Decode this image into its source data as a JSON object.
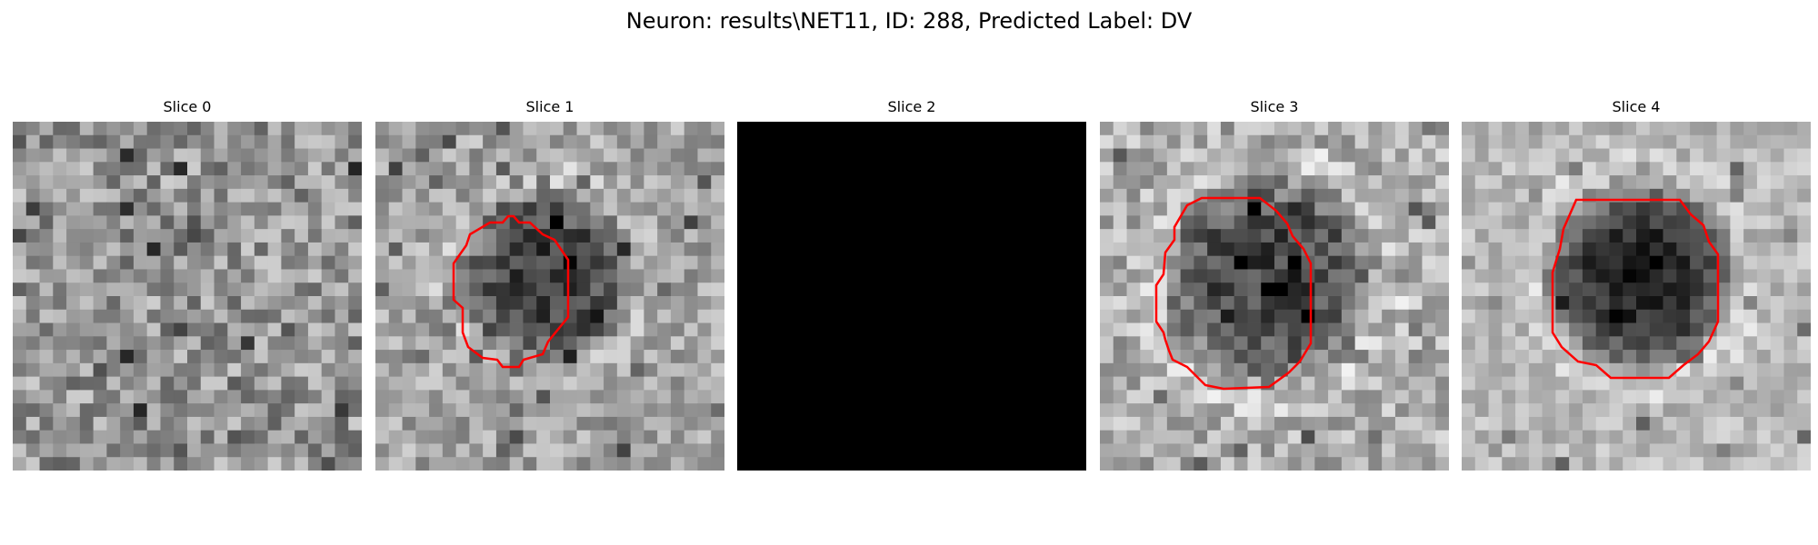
{
  "figure": {
    "title": "Neuron: results\\NET11, ID: 288, Predicted Label: DV"
  },
  "panels": [
    {
      "title": "Slice 0",
      "image": "grainy-grayscale-tissue",
      "contour": false,
      "contour_color": "#ff0000"
    },
    {
      "title": "Slice 1",
      "image": "grayscale-dark-blob",
      "contour": true,
      "contour_color": "#ff0000"
    },
    {
      "title": "Slice 2",
      "image": "solid-black",
      "contour": false,
      "contour_color": "#ff0000"
    },
    {
      "title": "Slice 3",
      "image": "grayscale-dark-blob",
      "contour": true,
      "contour_color": "#ff0000"
    },
    {
      "title": "Slice 4",
      "image": "grayscale-dark-blob",
      "contour": true,
      "contour_color": "#ff0000"
    }
  ]
}
